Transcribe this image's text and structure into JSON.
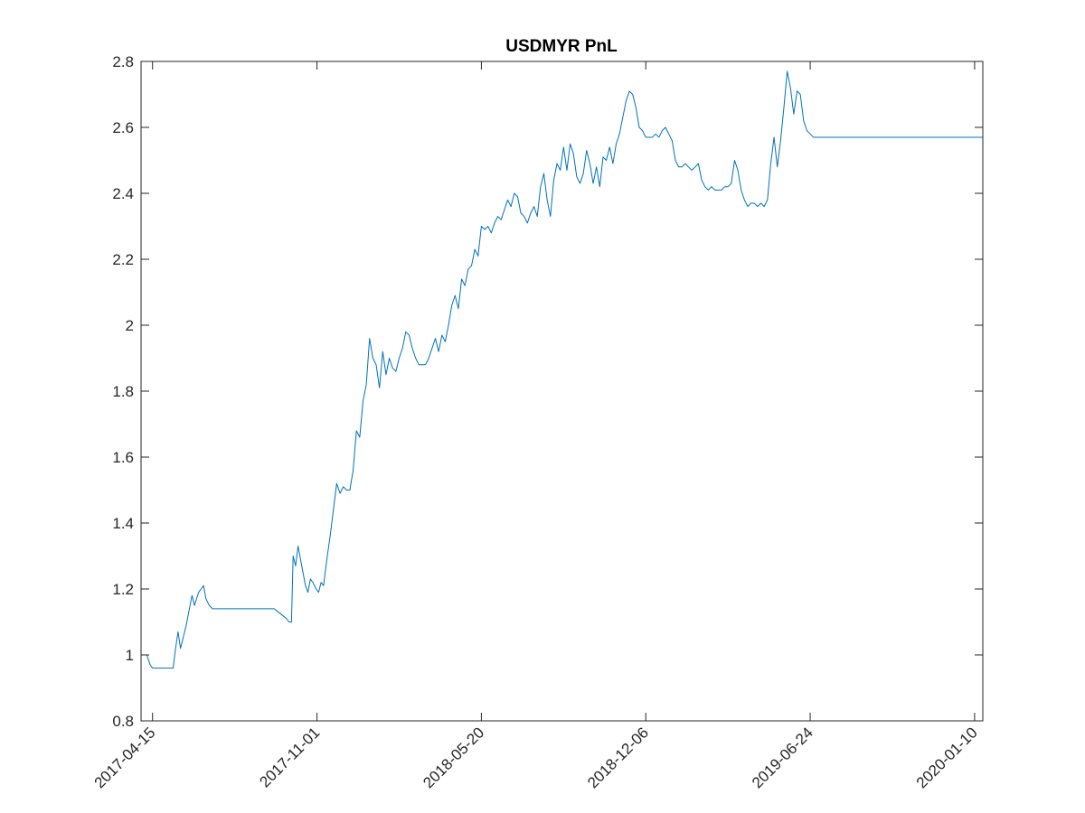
{
  "chart_data": {
    "type": "line",
    "title": "USDMYR PnL",
    "xlabel": "",
    "ylabel": "",
    "x_axis": "date",
    "xlim": [
      "2017-04-01",
      "2020-01-20"
    ],
    "ylim": [
      0.8,
      2.8
    ],
    "x_ticks": [
      "2017-04-15",
      "2017-11-01",
      "2018-05-20",
      "2018-12-06",
      "2019-06-24",
      "2020-01-10"
    ],
    "y_ticks": [
      0.8,
      1,
      1.2,
      1.4,
      1.6,
      1.8,
      2,
      2.2,
      2.4,
      2.6,
      2.8
    ],
    "y_tick_labels": [
      "0.8",
      "1",
      "1.2",
      "1.4",
      "1.6",
      "1.8",
      "2",
      "2.2",
      "2.4",
      "2.6",
      "2.8"
    ],
    "grid": false,
    "box": true,
    "line_color": "#0072BD",
    "axis_color": "#262626",
    "series": [
      {
        "x": [
          "2017-04-01",
          "2017-04-08",
          "2017-04-12",
          "2017-04-15",
          "2017-04-20",
          "2017-05-10",
          "2017-05-13",
          "2017-05-16",
          "2017-05-19",
          "2017-05-22",
          "2017-05-26",
          "2017-05-29",
          "2017-06-02",
          "2017-06-05",
          "2017-06-10",
          "2017-06-13",
          "2017-06-16",
          "2017-06-19",
          "2017-06-23",
          "2017-06-27",
          "2017-07-05",
          "2017-09-10",
          "2017-09-15",
          "2017-09-20",
          "2017-09-25",
          "2017-09-28",
          "2017-10-01",
          "2017-10-03",
          "2017-10-06",
          "2017-10-09",
          "2017-10-12",
          "2017-10-15",
          "2017-10-18",
          "2017-10-21",
          "2017-10-24",
          "2017-10-27",
          "2017-10-31",
          "2017-11-03",
          "2017-11-06",
          "2017-11-09",
          "2017-11-13",
          "2017-11-17",
          "2017-11-21",
          "2017-11-25",
          "2017-11-29",
          "2017-12-03",
          "2017-12-07",
          "2017-12-11",
          "2017-12-15",
          "2017-12-19",
          "2017-12-23",
          "2017-12-27",
          "2017-12-31",
          "2018-01-04",
          "2018-01-08",
          "2018-01-12",
          "2018-01-16",
          "2018-01-20",
          "2018-01-24",
          "2018-01-28",
          "2018-02-01",
          "2018-02-05",
          "2018-02-09",
          "2018-02-13",
          "2018-02-17",
          "2018-02-21",
          "2018-02-25",
          "2018-03-01",
          "2018-03-05",
          "2018-03-09",
          "2018-03-13",
          "2018-03-17",
          "2018-03-21",
          "2018-03-25",
          "2018-03-29",
          "2018-04-02",
          "2018-04-06",
          "2018-04-10",
          "2018-04-14",
          "2018-04-18",
          "2018-04-22",
          "2018-04-26",
          "2018-04-30",
          "2018-05-04",
          "2018-05-08",
          "2018-05-12",
          "2018-05-16",
          "2018-05-20",
          "2018-05-24",
          "2018-05-28",
          "2018-06-01",
          "2018-06-05",
          "2018-06-09",
          "2018-06-13",
          "2018-06-17",
          "2018-06-21",
          "2018-06-25",
          "2018-06-29",
          "2018-07-03",
          "2018-07-07",
          "2018-07-11",
          "2018-07-15",
          "2018-07-19",
          "2018-07-23",
          "2018-07-27",
          "2018-07-31",
          "2018-08-04",
          "2018-08-08",
          "2018-08-12",
          "2018-08-16",
          "2018-08-20",
          "2018-08-24",
          "2018-08-28",
          "2018-09-01",
          "2018-09-05",
          "2018-09-09",
          "2018-09-13",
          "2018-09-17",
          "2018-09-21",
          "2018-09-25",
          "2018-09-29",
          "2018-10-03",
          "2018-10-07",
          "2018-10-11",
          "2018-10-15",
          "2018-10-19",
          "2018-10-23",
          "2018-10-27",
          "2018-10-31",
          "2018-11-04",
          "2018-11-08",
          "2018-11-12",
          "2018-11-16",
          "2018-11-20",
          "2018-11-24",
          "2018-11-28",
          "2018-12-02",
          "2018-12-06",
          "2018-12-10",
          "2018-12-14",
          "2018-12-18",
          "2018-12-22",
          "2018-12-26",
          "2018-12-30",
          "2019-01-03",
          "2019-01-07",
          "2019-01-11",
          "2019-01-15",
          "2019-01-19",
          "2019-01-23",
          "2019-01-27",
          "2019-01-31",
          "2019-02-04",
          "2019-02-08",
          "2019-02-12",
          "2019-02-16",
          "2019-02-20",
          "2019-02-24",
          "2019-02-28",
          "2019-03-04",
          "2019-03-08",
          "2019-03-12",
          "2019-03-16",
          "2019-03-20",
          "2019-03-24",
          "2019-03-28",
          "2019-04-01",
          "2019-04-05",
          "2019-04-09",
          "2019-04-13",
          "2019-04-17",
          "2019-04-21",
          "2019-04-25",
          "2019-04-29",
          "2019-05-03",
          "2019-05-07",
          "2019-05-11",
          "2019-05-15",
          "2019-05-19",
          "2019-05-23",
          "2019-05-27",
          "2019-05-31",
          "2019-06-04",
          "2019-06-08",
          "2019-06-12",
          "2019-06-16",
          "2019-06-20",
          "2019-06-24",
          "2019-06-28",
          "2019-07-02",
          "2019-07-06",
          "2019-07-10",
          "2019-07-14",
          "2019-07-18",
          "2019-07-22",
          "2019-07-26",
          "2019-07-30",
          "2019-08-03",
          "2019-08-07",
          "2019-08-11",
          "2019-08-15",
          "2019-08-19",
          "2019-08-23",
          "2019-08-27",
          "2019-08-31",
          "2019-09-04",
          "2019-09-08",
          "2019-09-12",
          "2019-09-16",
          "2019-09-20",
          "2019-09-24",
          "2019-09-28",
          "2019-10-02",
          "2019-10-06",
          "2019-10-10",
          "2019-10-14",
          "2019-10-18",
          "2019-10-22",
          "2019-10-26",
          "2019-10-30",
          "2019-11-03",
          "2019-11-07",
          "2019-11-11",
          "2019-11-15",
          "2019-11-19",
          "2019-11-23",
          "2019-11-27",
          "2019-12-01",
          "2019-12-05",
          "2019-12-09",
          "2019-12-13",
          "2019-12-17",
          "2019-12-21",
          "2019-12-25",
          "2019-12-29",
          "2020-01-02",
          "2020-01-05",
          "2020-01-08",
          "2020-01-11",
          "2020-01-14",
          "2020-01-17",
          "2020-01-20"
        ],
        "y": [
          1.0,
          1.0,
          0.97,
          0.96,
          0.96,
          0.96,
          1.02,
          1.07,
          1.02,
          1.05,
          1.09,
          1.13,
          1.18,
          1.15,
          1.19,
          1.2,
          1.21,
          1.17,
          1.15,
          1.14,
          1.14,
          1.14,
          1.13,
          1.12,
          1.11,
          1.1,
          1.1,
          1.3,
          1.27,
          1.33,
          1.29,
          1.25,
          1.21,
          1.19,
          1.23,
          1.22,
          1.2,
          1.19,
          1.22,
          1.21,
          1.29,
          1.36,
          1.44,
          1.52,
          1.49,
          1.51,
          1.5,
          1.5,
          1.56,
          1.68,
          1.66,
          1.77,
          1.82,
          1.96,
          1.9,
          1.88,
          1.81,
          1.92,
          1.85,
          1.9,
          1.87,
          1.86,
          1.9,
          1.93,
          1.98,
          1.97,
          1.93,
          1.9,
          1.88,
          1.88,
          1.88,
          1.9,
          1.93,
          1.96,
          1.92,
          1.97,
          1.95,
          2.0,
          2.06,
          2.09,
          2.05,
          2.14,
          2.12,
          2.17,
          2.18,
          2.23,
          2.21,
          2.3,
          2.29,
          2.3,
          2.28,
          2.31,
          2.33,
          2.32,
          2.35,
          2.38,
          2.36,
          2.4,
          2.39,
          2.34,
          2.33,
          2.31,
          2.34,
          2.36,
          2.33,
          2.42,
          2.46,
          2.38,
          2.33,
          2.44,
          2.49,
          2.47,
          2.54,
          2.47,
          2.55,
          2.52,
          2.45,
          2.43,
          2.46,
          2.53,
          2.49,
          2.43,
          2.48,
          2.42,
          2.51,
          2.5,
          2.54,
          2.49,
          2.55,
          2.58,
          2.63,
          2.68,
          2.71,
          2.7,
          2.66,
          2.6,
          2.59,
          2.57,
          2.57,
          2.57,
          2.58,
          2.57,
          2.59,
          2.6,
          2.58,
          2.56,
          2.5,
          2.48,
          2.48,
          2.49,
          2.48,
          2.47,
          2.48,
          2.49,
          2.44,
          2.42,
          2.41,
          2.42,
          2.41,
          2.41,
          2.41,
          2.42,
          2.42,
          2.43,
          2.5,
          2.47,
          2.41,
          2.38,
          2.36,
          2.37,
          2.37,
          2.36,
          2.37,
          2.36,
          2.38,
          2.49,
          2.57,
          2.48,
          2.56,
          2.66,
          2.77,
          2.72,
          2.64,
          2.71,
          2.7,
          2.62,
          2.59,
          2.58,
          2.57,
          2.57,
          2.57,
          2.57,
          2.57,
          2.57,
          2.57,
          2.57,
          2.57,
          2.57,
          2.57,
          2.57,
          2.57,
          2.57,
          2.57,
          2.57,
          2.57,
          2.57,
          2.57,
          2.57,
          2.57,
          2.57,
          2.57,
          2.57,
          2.57,
          2.57,
          2.57,
          2.57,
          2.57,
          2.57,
          2.57,
          2.57,
          2.57,
          2.57,
          2.57,
          2.57,
          2.57,
          2.57,
          2.57,
          2.57,
          2.57,
          2.57,
          2.57,
          2.57,
          2.57,
          2.57,
          2.57,
          2.57,
          2.57,
          2.57,
          2.57,
          2.57,
          2.57,
          2.57
        ]
      }
    ]
  }
}
